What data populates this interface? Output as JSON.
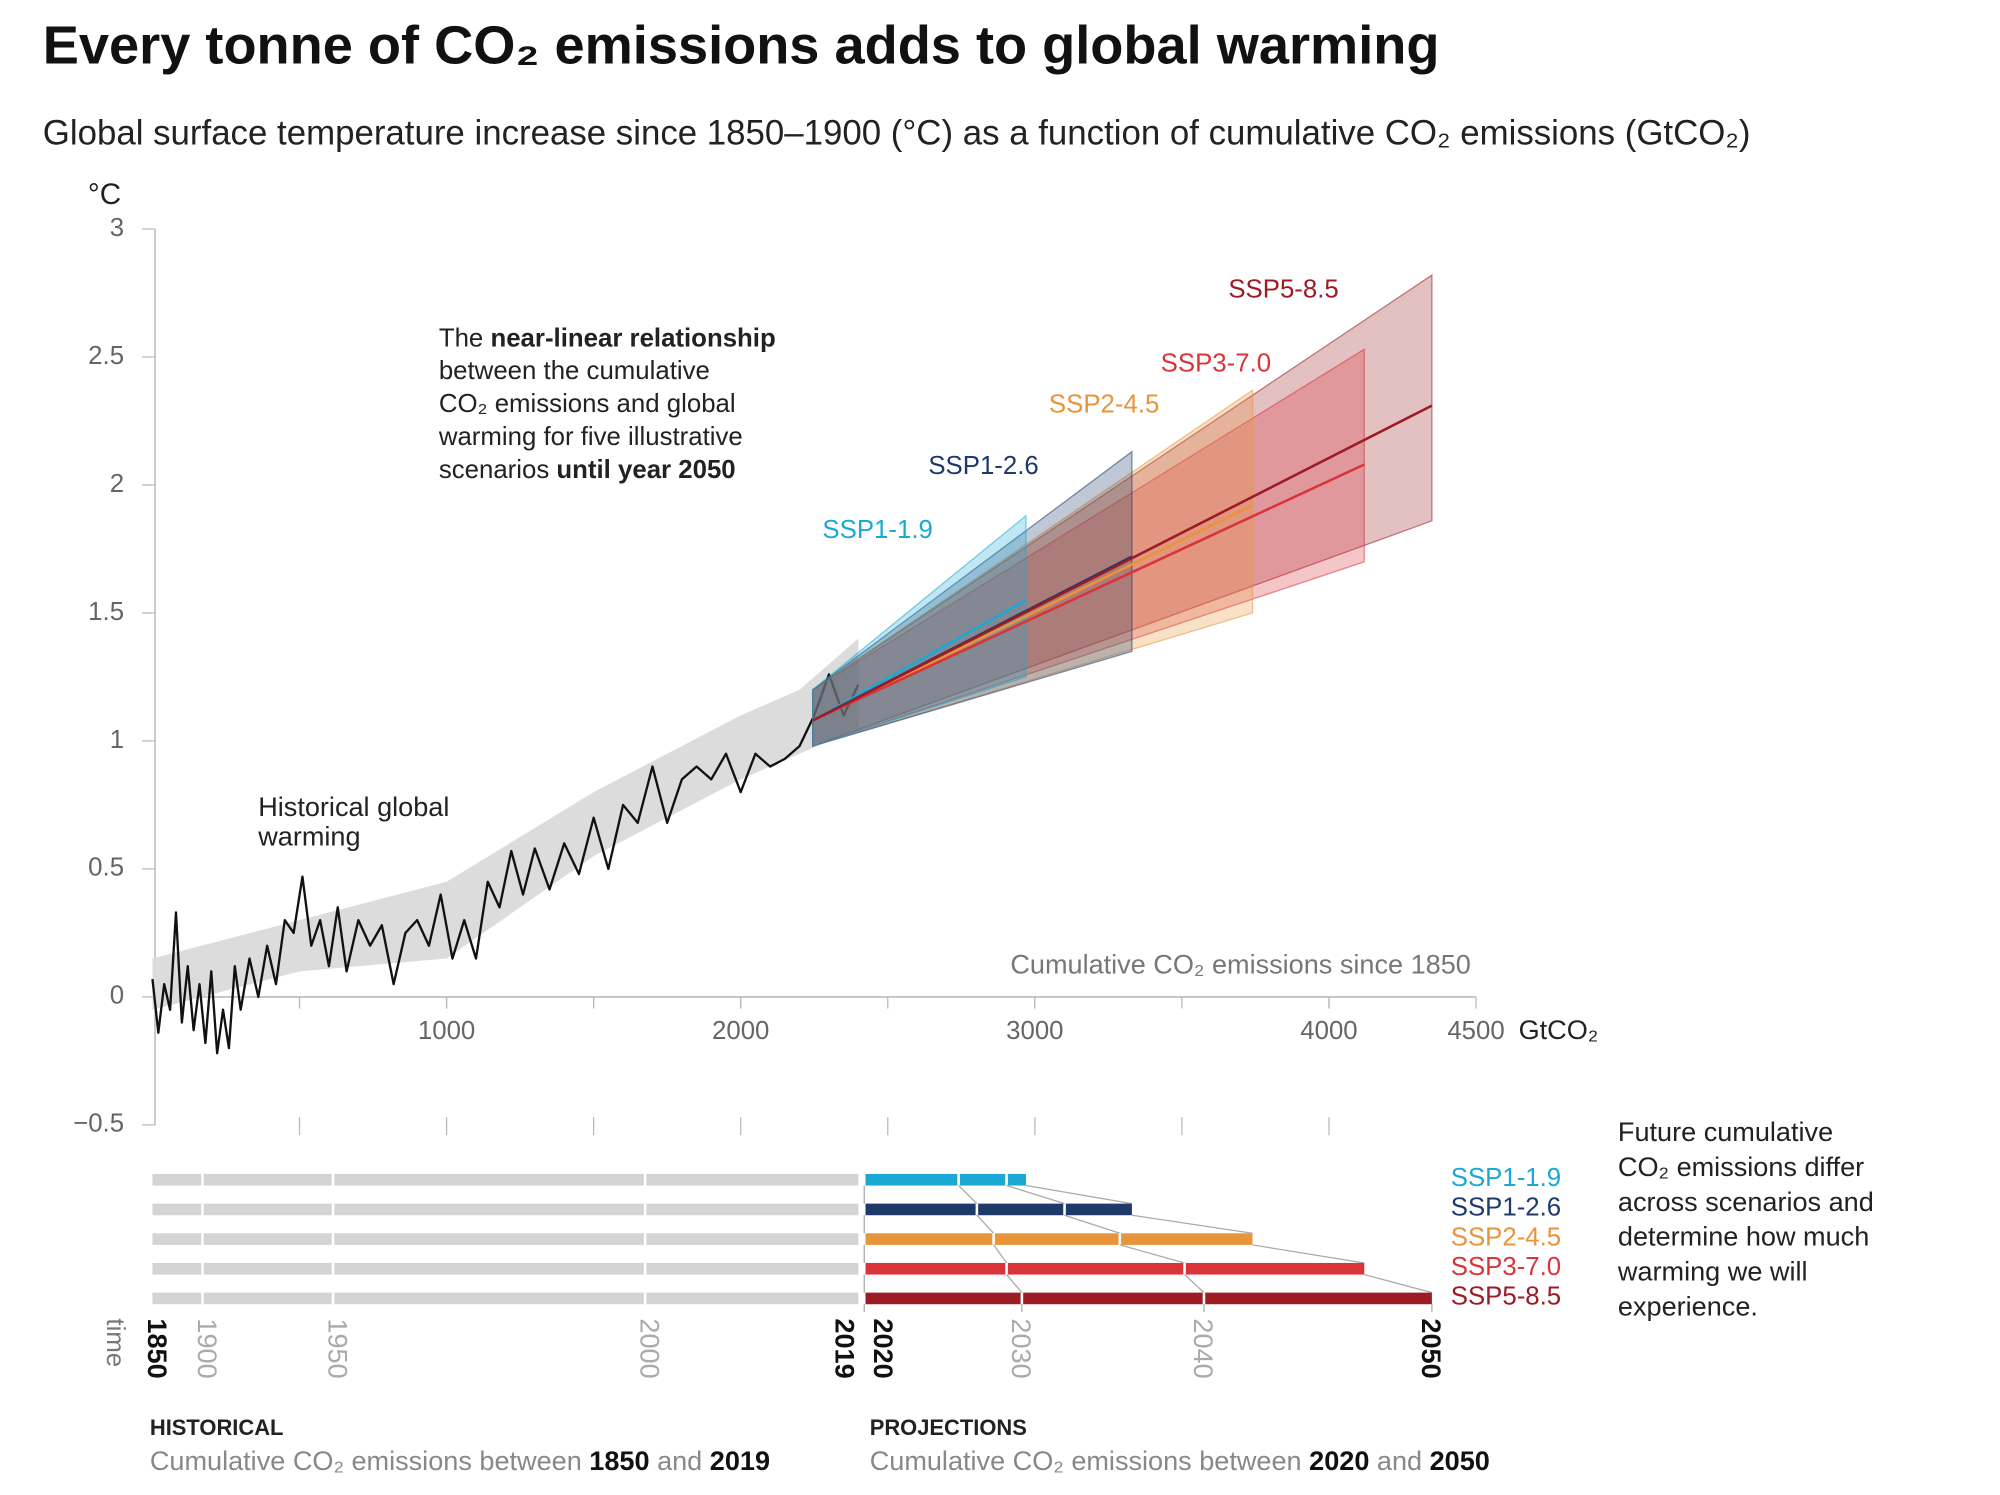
{
  "chart_data": {
    "type": "line",
    "title": "Every tonne of CO₂ emissions adds to global warming",
    "subtitle": "Global surface temperature increase since 1850–1900 (°C) as a function of cumulative CO₂ emissions (GtCO₂)",
    "y_unit": "°C",
    "x_unit": "GtCO₂",
    "x_axis_label": "Cumulative CO₂ emissions since 1850",
    "xlim": [
      0,
      4500
    ],
    "xticks": [
      1000,
      2000,
      3000,
      4000,
      4500
    ],
    "xminorticks": [
      500,
      1000,
      1500,
      2000,
      2500,
      3000,
      3500,
      4000
    ],
    "ylim": [
      -0.5,
      3
    ],
    "yticks": [
      {
        "value": -0.5,
        "label": "−0.5"
      },
      0,
      0.5,
      1,
      1.5,
      2,
      2.5,
      3
    ],
    "annotation": [
      [
        {
          "text": "The "
        },
        {
          "text": "near-linear relationship",
          "bold": true
        }
      ],
      [
        {
          "text": "between the cumulative"
        }
      ],
      [
        {
          "text": "CO₂ emissions and global"
        }
      ],
      [
        {
          "text": "warming for five illustrative"
        }
      ],
      [
        {
          "text": "scenarios "
        },
        {
          "text": "until year 2050",
          "bold": true
        }
      ]
    ],
    "historical": {
      "label": [
        "Historical global",
        "warming"
      ],
      "color": "#111111",
      "band_color": "#dcdcdc",
      "x": [
        0,
        20,
        40,
        60,
        80,
        100,
        120,
        140,
        160,
        180,
        200,
        220,
        240,
        260,
        280,
        300,
        330,
        360,
        390,
        420,
        450,
        480,
        510,
        540,
        570,
        600,
        630,
        660,
        700,
        740,
        780,
        820,
        860,
        900,
        940,
        980,
        1020,
        1060,
        1100,
        1140,
        1180,
        1220,
        1260,
        1300,
        1350,
        1400,
        1450,
        1500,
        1550,
        1600,
        1650,
        1700,
        1750,
        1800,
        1850,
        1900,
        1950,
        2000,
        2050,
        2100,
        2150,
        2200,
        2250,
        2300,
        2350,
        2400
      ],
      "values": [
        0.07,
        -0.14,
        0.05,
        -0.05,
        0.33,
        -0.1,
        0.12,
        -0.13,
        0.05,
        -0.18,
        0.1,
        -0.22,
        -0.05,
        -0.2,
        0.12,
        -0.05,
        0.15,
        0.0,
        0.2,
        0.05,
        0.3,
        0.25,
        0.47,
        0.2,
        0.3,
        0.12,
        0.35,
        0.1,
        0.3,
        0.2,
        0.28,
        0.05,
        0.25,
        0.3,
        0.2,
        0.4,
        0.15,
        0.3,
        0.15,
        0.45,
        0.35,
        0.57,
        0.4,
        0.58,
        0.42,
        0.6,
        0.48,
        0.7,
        0.5,
        0.75,
        0.68,
        0.9,
        0.68,
        0.85,
        0.9,
        0.85,
        0.95,
        0.8,
        0.95,
        0.9,
        0.93,
        0.98,
        1.1,
        1.26,
        1.1,
        1.22
      ],
      "band_x": [
        0,
        500,
        1000,
        1500,
        2000,
        2200,
        2400
      ],
      "band_lower": [
        -0.05,
        0.1,
        0.15,
        0.55,
        0.85,
        0.95,
        1.05
      ],
      "band_upper": [
        0.15,
        0.3,
        0.45,
        0.8,
        1.1,
        1.2,
        1.4
      ]
    },
    "series": [
      {
        "name": "SSP1-1.9",
        "color": "#1ba9d4",
        "x": [
          2245,
          2970
        ],
        "values": [
          1.08,
          1.55
        ],
        "lower": [
          0.98,
          1.25
        ],
        "upper": [
          1.2,
          1.88
        ],
        "cumulative": [
          2420,
          2741,
          2904,
          2970
        ]
      },
      {
        "name": "SSP1-2.6",
        "color": "#1d3a6b",
        "x": [
          2245,
          3330
        ],
        "values": [
          1.08,
          1.72
        ],
        "lower": [
          0.98,
          1.35
        ],
        "upper": [
          1.2,
          2.13
        ],
        "cumulative": [
          2420,
          2803,
          3101,
          3330
        ]
      },
      {
        "name": "SSP2-4.5",
        "color": "#e8943a",
        "x": [
          2245,
          3740
        ],
        "values": [
          1.08,
          1.92
        ],
        "lower": [
          0.98,
          1.5
        ],
        "upper": [
          1.2,
          2.37
        ],
        "cumulative": [
          2420,
          2860,
          3289,
          3740
        ]
      },
      {
        "name": "SSP3-7.0",
        "color": "#d9343a",
        "x": [
          2245,
          4120
        ],
        "values": [
          1.08,
          2.08
        ],
        "lower": [
          0.98,
          1.7
        ],
        "upper": [
          1.2,
          2.53
        ],
        "cumulative": [
          2420,
          2904,
          3509,
          4120
        ]
      },
      {
        "name": "SSP5-8.5",
        "color": "#9c1b24",
        "x": [
          2245,
          4350
        ],
        "values": [
          1.08,
          2.31
        ],
        "lower": [
          0.98,
          1.86
        ],
        "upper": [
          1.2,
          2.82
        ],
        "cumulative": [
          2420,
          2956,
          3575,
          4350
        ]
      }
    ],
    "time_label": "time",
    "history_years": [
      1850,
      1900,
      1950,
      2000,
      2019
    ],
    "history_cumulative": [
      0,
      170,
      614,
      1675,
      2400
    ],
    "projection_years": [
      2020,
      2030,
      2040,
      2050
    ],
    "bold_years": [
      1850,
      2019,
      2020,
      2050
    ],
    "historical_heading": "HISTORICAL",
    "historical_text": [
      {
        "text": "Cumulative CO₂ emissions between "
      },
      {
        "text": "1850",
        "bold": true
      },
      {
        "text": " and "
      },
      {
        "text": "2019",
        "bold": true
      }
    ],
    "projections_heading": "PROJECTIONS",
    "projections_text": [
      {
        "text": "Cumulative CO₂ emissions between "
      },
      {
        "text": "2020",
        "bold": true
      },
      {
        "text": " and "
      },
      {
        "text": "2050",
        "bold": true
      }
    ],
    "side_note": [
      "Future cumulative",
      "CO₂ emissions differ",
      "across scenarios and",
      "determine how much",
      "warming we will",
      "experience."
    ]
  }
}
